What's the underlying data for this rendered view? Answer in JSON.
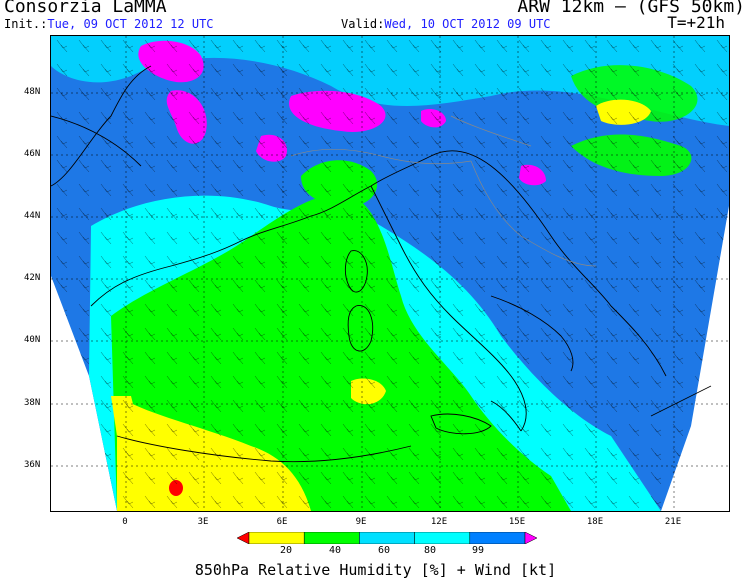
{
  "header": {
    "org": "Consorzia LaMMA",
    "model": "ARW 12km – (GFS 50km)",
    "init_label": "Init.:",
    "init_value": "Tue, 09 OCT 2012  12 UTC",
    "valid_label": "Valid:",
    "valid_value": "Wed, 10 OCT 2012  09 UTC",
    "timestep": "T=+21h"
  },
  "lat_labels": [
    "48N",
    "46N",
    "44N",
    "42N",
    "40N",
    "38N",
    "36N"
  ],
  "lon_labels": [
    "0",
    "3E",
    "6E",
    "9E",
    "12E",
    "15E",
    "18E",
    "21E"
  ],
  "colorbar": {
    "colors": [
      "#ff0000",
      "#ffff00",
      "#00ff00",
      "#00e0ff",
      "#00ffff",
      "#0080ff",
      "#ff00ff"
    ],
    "ticks": [
      "20",
      "40",
      "60",
      "80",
      "99"
    ]
  },
  "caption": "850hPa Relative Humidity [%] + Wind [kt]",
  "colors": {
    "red": "#ff0000",
    "yellow": "#ffff00",
    "green": "#00ff00",
    "cyan": "#00ffff",
    "lightblue": "#00d8ff",
    "blue": "#1e78e6",
    "magenta": "#ff00ff"
  }
}
